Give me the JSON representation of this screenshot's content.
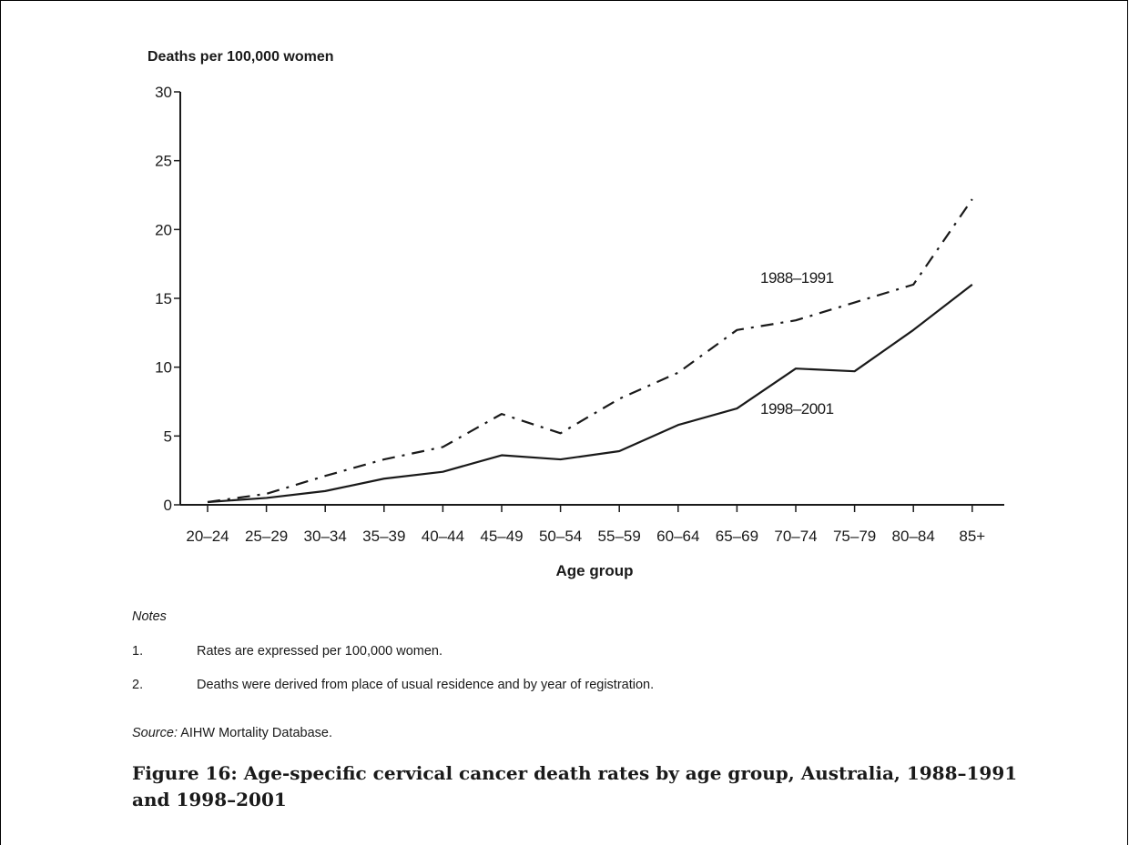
{
  "chart_data": {
    "type": "line",
    "ylabel": "Deaths per 100,000 women",
    "xlabel": "Age group",
    "ylim": [
      0,
      30
    ],
    "yticks": [
      0,
      5,
      10,
      15,
      20,
      25,
      30
    ],
    "grid": false,
    "categories": [
      "20–24",
      "25–29",
      "30–34",
      "35–39",
      "40–44",
      "45–49",
      "50–54",
      "55–59",
      "60–64",
      "65–69",
      "70–74",
      "75–79",
      "80–84",
      "85+"
    ],
    "series": [
      {
        "name": "1988–1991",
        "style": "dash-dot",
        "values": [
          0.2,
          0.8,
          2.1,
          3.3,
          4.2,
          6.6,
          5.2,
          7.7,
          9.6,
          12.7,
          13.4,
          14.7,
          16.0,
          22.2
        ]
      },
      {
        "name": "1998–2001",
        "style": "solid",
        "values": [
          0.2,
          0.5,
          1.0,
          1.9,
          2.4,
          3.6,
          3.3,
          3.9,
          5.8,
          7.0,
          9.9,
          9.7,
          12.7,
          16.0
        ]
      }
    ],
    "line_color": "#1a1a1a"
  },
  "notes": {
    "title": "Notes",
    "items": [
      {
        "num": "1.",
        "text": "Rates are expressed per 100,000 women."
      },
      {
        "num": "2.",
        "text": "Deaths were derived from place of usual residence and by year of registration."
      }
    ]
  },
  "source": {
    "label": "Source:",
    "text": "AIHW Mortality Database."
  },
  "caption": "Figure 16: Age-specific cervical cancer death rates by age group, Australia, 1988–1991 and 1998–2001"
}
